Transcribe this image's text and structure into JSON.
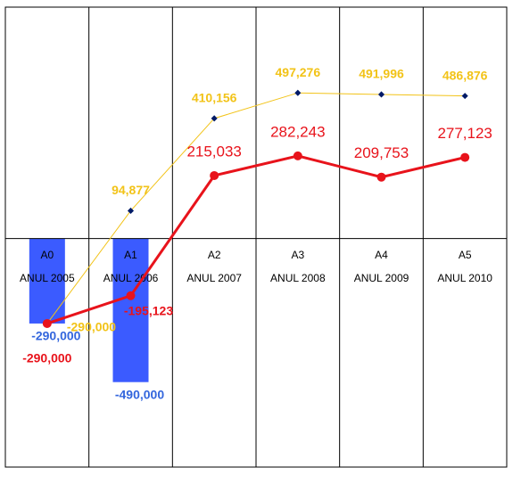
{
  "chart_data": {
    "type": "bar-line",
    "categories": [
      [
        "A0",
        "ANUL 2005"
      ],
      [
        "A1",
        "ANUL 2006"
      ],
      [
        "A2",
        "ANUL 2007"
      ],
      [
        "A3",
        "ANUL 2008"
      ],
      [
        "A4",
        "ANUL 2009"
      ],
      [
        "A5",
        "ANUL 2010"
      ]
    ],
    "ylim": [
      -780000,
      790000
    ],
    "series": [
      {
        "type": "bar",
        "color": "#3b5bff",
        "label_color": "#3366dd",
        "values": [
          -290000,
          -490000,
          null,
          null,
          null,
          null
        ],
        "value_labels": [
          "-290,000",
          "-490,000",
          null,
          null,
          null,
          null
        ]
      },
      {
        "type": "line",
        "color": "#f2c318",
        "values": [
          -290000,
          94877,
          410156,
          497276,
          491996,
          486876
        ],
        "value_labels": [
          "-290,000",
          "94,877",
          "410,156",
          "497,276",
          "491,996",
          "486,876"
        ]
      },
      {
        "type": "line",
        "color": "#e8131b",
        "values": [
          -290000,
          -195123,
          215033,
          282243,
          209753,
          277123
        ],
        "value_labels": [
          "-290,000",
          "-195,123",
          "215,033",
          "282,243",
          "209,753",
          "277,123"
        ]
      }
    ]
  }
}
